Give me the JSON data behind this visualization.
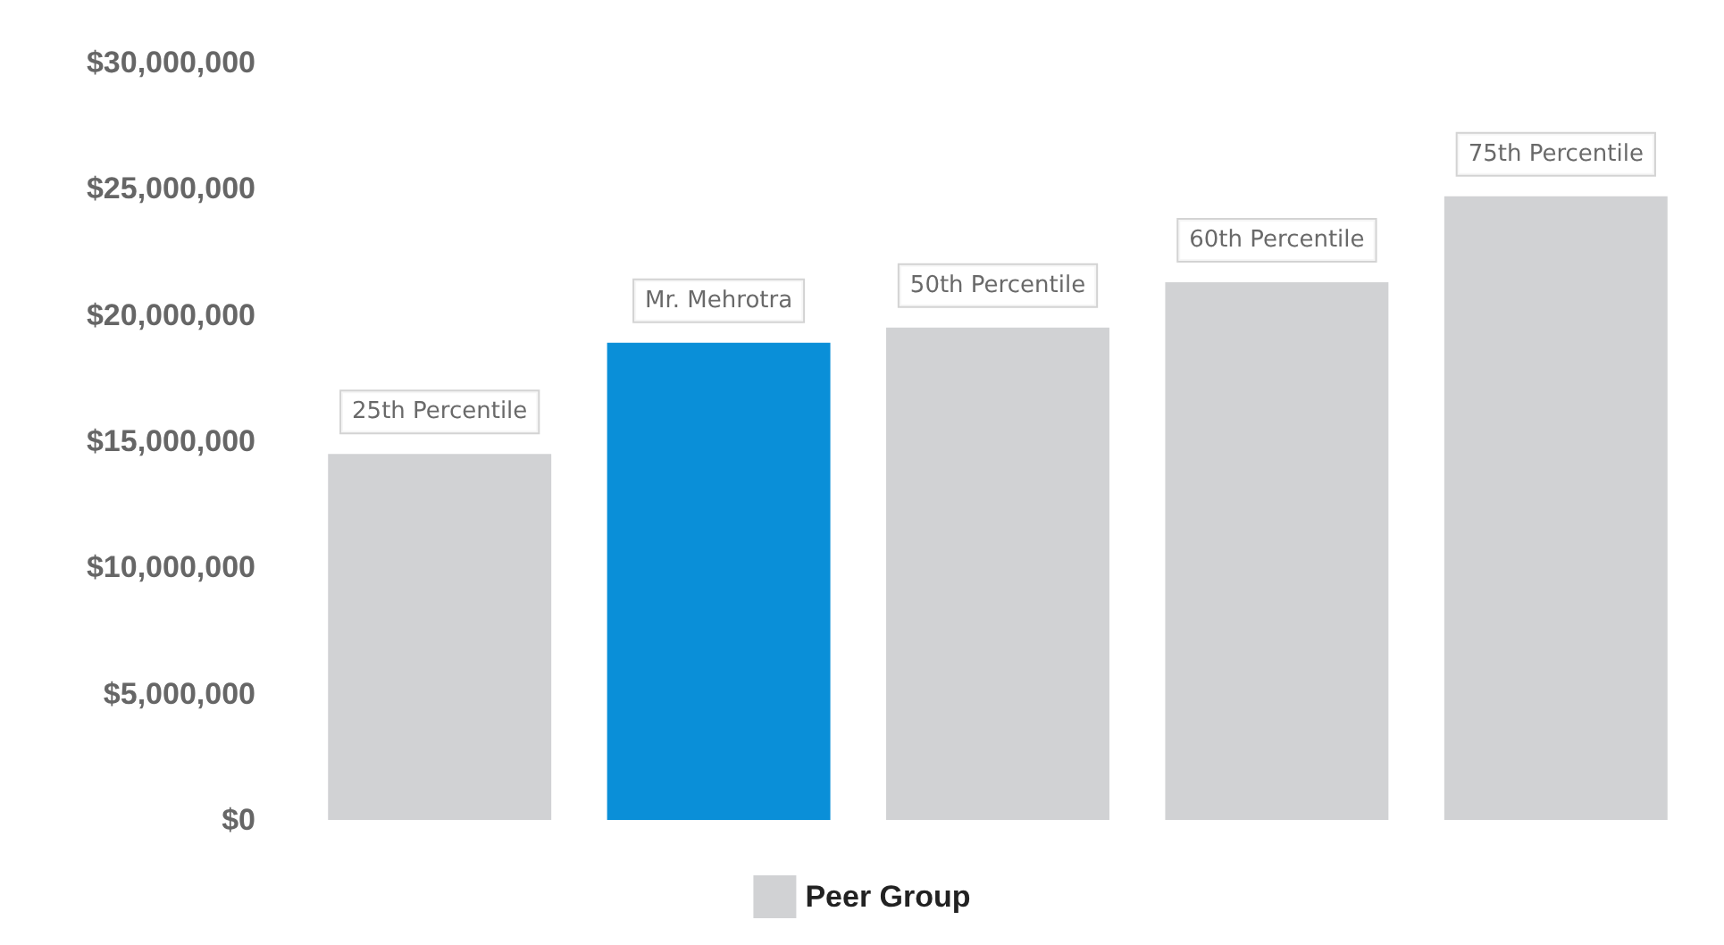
{
  "chart_data": {
    "type": "bar",
    "categories": [
      null,
      null,
      null,
      null,
      null
    ],
    "series": [
      {
        "name": "Peer Group",
        "color": "#d1d2d4",
        "colors": [
          "#d1d2d4",
          "#0a8fd8",
          "#d1d2d4",
          "#d1d2d4",
          "#d1d2d4"
        ],
        "values": [
          14500000,
          18900000,
          19500000,
          21300000,
          24700000
        ]
      }
    ],
    "annotations": [
      {
        "text": "25th Percentile",
        "y": 14500000
      },
      {
        "text": "Mr. Mehrotra",
        "y": 18900000
      },
      {
        "text": "50th Percentile",
        "y": 19500000
      },
      {
        "text": "60th Percentile",
        "y": 21300000
      },
      {
        "text": "75th Percentile",
        "y": 24700000
      }
    ],
    "ylim": [
      0,
      30000000
    ],
    "yticks": [
      {
        "value": 0,
        "label": "$0"
      },
      {
        "value": 5000000,
        "label": "$5,000,000"
      },
      {
        "value": 10000000,
        "label": "$10,000,000"
      },
      {
        "value": 15000000,
        "label": "$15,000,000"
      },
      {
        "value": 20000000,
        "label": "$20,000,000"
      },
      {
        "value": 25000000,
        "label": "$25,000,000"
      },
      {
        "value": 30000000,
        "label": "$30,000,000"
      }
    ],
    "grid": false,
    "legend": "bottom",
    "tick_labels": "y"
  }
}
